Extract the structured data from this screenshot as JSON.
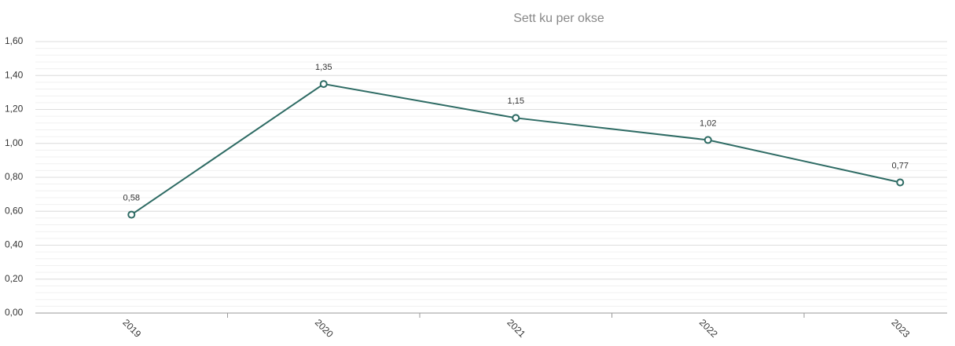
{
  "chart_data": {
    "type": "line",
    "title": "Sett ku per okse",
    "categories": [
      "2019",
      "2020",
      "2021",
      "2022",
      "2023"
    ],
    "series": [
      {
        "name": "Sett ku per okse",
        "color": "#2e6b64",
        "values": [
          0.58,
          1.35,
          1.15,
          1.02,
          0.77
        ],
        "value_labels": [
          "0,58",
          "1,35",
          "1,15",
          "1,02",
          "0,77"
        ]
      }
    ],
    "ylim": [
      0,
      1.6
    ],
    "yticks": [
      {
        "value": 0,
        "label": "0,00"
      },
      {
        "value": 0.2,
        "label": "0,20"
      },
      {
        "value": 0.4,
        "label": "0,40"
      },
      {
        "value": 0.6,
        "label": "0,60"
      },
      {
        "value": 0.8,
        "label": "0,80"
      },
      {
        "value": 1.0,
        "label": "1,00"
      },
      {
        "value": 1.2,
        "label": "1,20"
      },
      {
        "value": 1.4,
        "label": "1,40"
      },
      {
        "value": 1.6,
        "label": "1,60"
      }
    ],
    "grid": true
  }
}
